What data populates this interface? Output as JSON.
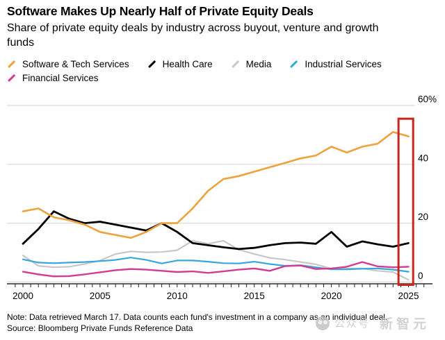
{
  "header": {
    "title": "Software Makes Up Nearly Half of Private Equity Deals",
    "subtitle": "Share of private equity deals by industry across buyout, venture and growth funds"
  },
  "chart_data": {
    "type": "line",
    "x": [
      2000,
      2001,
      2002,
      2003,
      2004,
      2005,
      2006,
      2007,
      2008,
      2009,
      2010,
      2011,
      2012,
      2013,
      2014,
      2015,
      2016,
      2017,
      2018,
      2019,
      2020,
      2021,
      2022,
      2023,
      2024,
      2025
    ],
    "series": [
      {
        "name": "Software & Tech Services",
        "color": "#EFA13E",
        "values": [
          24,
          25,
          22,
          21,
          19.5,
          17,
          16,
          15,
          17,
          20,
          20,
          25,
          31,
          35,
          36,
          37.5,
          39,
          40.5,
          42,
          43,
          46,
          44,
          46,
          47,
          51,
          49.5
        ]
      },
      {
        "name": "Health Care",
        "color": "#000000",
        "values": [
          13,
          18,
          24,
          21.5,
          20,
          20.5,
          19.5,
          18.5,
          17.5,
          20,
          17,
          13.2,
          12.5,
          11.8,
          11.2,
          11.6,
          12.5,
          13.2,
          13.4,
          13,
          17,
          12,
          13.8,
          12.8,
          12,
          13.2
        ]
      },
      {
        "name": "Media",
        "color": "#C7C7C7",
        "values": [
          9,
          5.5,
          5,
          5.2,
          6.1,
          7.3,
          9.5,
          10.4,
          10.1,
          10.2,
          10.8,
          14,
          13,
          14,
          11,
          9.5,
          8.2,
          7.6,
          6.8,
          6,
          4.5,
          4.6,
          4.6,
          3.8,
          3.4,
          0.7
        ]
      },
      {
        "name": "Industrial Services",
        "color": "#35A7DC",
        "values": [
          7.7,
          6.6,
          6.4,
          6.6,
          6.8,
          7.1,
          7.5,
          8.3,
          7.5,
          6.3,
          7.3,
          7.3,
          6.9,
          6.4,
          6.3,
          6.9,
          6.1,
          5.5,
          5.7,
          5,
          4.3,
          4.3,
          4.5,
          4.6,
          4.2,
          3.5
        ]
      },
      {
        "name": "Financial Services",
        "color": "#D63A90",
        "values": [
          3.5,
          2.6,
          1.9,
          2,
          2.6,
          3.3,
          4,
          4.4,
          4.2,
          3.8,
          3.4,
          3.6,
          3.1,
          3.6,
          4.2,
          4.6,
          3.8,
          5.4,
          5.6,
          4.4,
          4.6,
          5.2,
          6.8,
          5.3,
          5,
          5.2
        ]
      }
    ],
    "ylim": [
      0,
      60
    ],
    "yticks": [
      {
        "value": 60,
        "label": "60%"
      },
      {
        "value": 40,
        "label": "40"
      },
      {
        "value": 20,
        "label": "20"
      },
      {
        "value": 0,
        "label": "0"
      }
    ],
    "xticks": [
      2000,
      2005,
      2010,
      2015,
      2020,
      2025
    ],
    "grid": "horizontal",
    "legend_position": "top",
    "highlight_box": {
      "x_from": 2024.35,
      "x_to": 2025.3,
      "y_from": 0,
      "y_to": 55.5,
      "color": "#C8251D"
    }
  },
  "footer": {
    "note": "Note: Data retrieved March 17. Data counts each fund's investment in a company as an individual deal.",
    "source": "Source: Bloomberg Private Funds Reference Data"
  },
  "watermark": {
    "account_label": "公众号",
    "brand_label": "新智元"
  }
}
